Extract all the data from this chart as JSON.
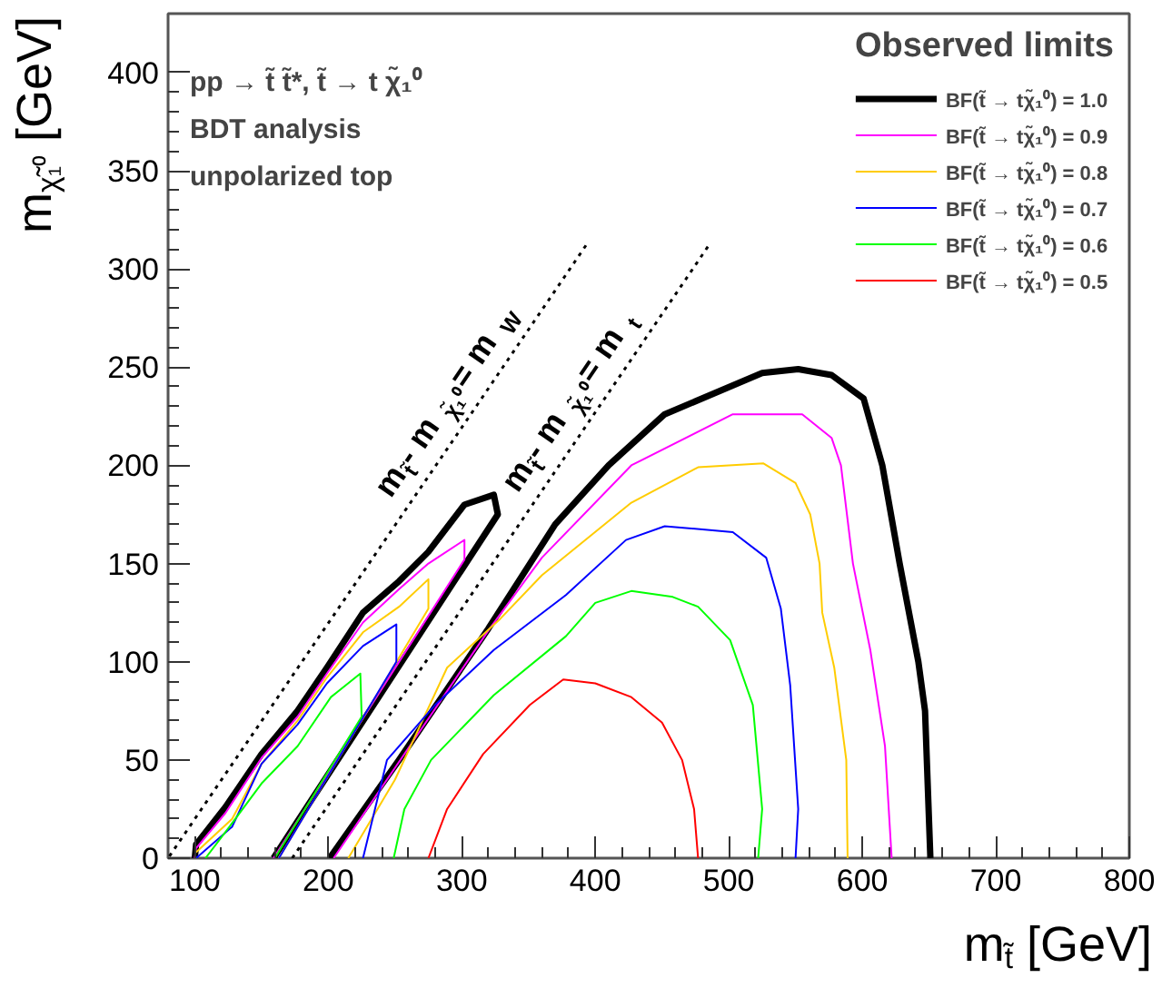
{
  "chart_data": {
    "type": "line",
    "xlabel": "m$_{t̃}$  [GeV]",
    "ylabel": "m$_{χ̃₁⁰}$  [GeV]",
    "legend_title": "Observed limits",
    "xlim": [
      80,
      800
    ],
    "ylim": [
      0,
      430
    ],
    "xticks": [
      100,
      200,
      300,
      400,
      500,
      600,
      700,
      800
    ],
    "yticks": [
      0,
      50,
      100,
      150,
      200,
      250,
      300,
      350,
      400
    ],
    "grid": false,
    "legend": "top right",
    "marker": "none",
    "series": [
      {
        "name": "BF(t̃ → tχ̃₁⁰) = 1.0",
        "color": "#000000",
        "x": [
          100,
          101,
          123,
          150,
          177,
          199,
          226,
          253,
          275,
          302,
          324,
          327,
          159,
          null,
          201,
          253,
          320,
          370,
          410,
          452,
          525,
          552,
          577,
          601,
          615,
          628,
          642,
          647,
          651
        ],
        "values": [
          0,
          7,
          26,
          53,
          75,
          97,
          125,
          141,
          156,
          180,
          185,
          175,
          0,
          null,
          0,
          50,
          117,
          170,
          200,
          226,
          247,
          249,
          246,
          234,
          200,
          150,
          100,
          75,
          0
        ]
      },
      {
        "name": "BF(t̃ → tχ̃₁⁰) = 0.9",
        "color": "#ff00ff",
        "x": [
          100,
          101,
          123,
          150,
          177,
          199,
          226,
          253,
          275,
          302,
          302,
          159,
          null,
          204,
          262,
          320,
          360,
          427,
          503,
          555,
          577,
          584,
          593,
          606,
          617,
          622
        ],
        "values": [
          0,
          5,
          23,
          51,
          72,
          94,
          120,
          137,
          150,
          162,
          152,
          0,
          null,
          0,
          58,
          116,
          153,
          200,
          226,
          226,
          214,
          200,
          150,
          106,
          57,
          0
        ]
      },
      {
        "name": "BF(t̃ → tχ̃₁⁰) = 0.8",
        "color": "#ffcc00",
        "x": [
          101,
          128,
          150,
          177,
          199,
          226,
          253,
          275,
          275,
          163,
          null,
          215,
          250,
          289,
          329,
          360,
          427,
          477,
          526,
          550,
          561,
          568,
          570,
          579,
          588,
          589
        ],
        "values": [
          3,
          20,
          48,
          70,
          92,
          115,
          128,
          142,
          127,
          0,
          null,
          0,
          40,
          97,
          122,
          144,
          181,
          199,
          201,
          191,
          175,
          150,
          125,
          97,
          50,
          0
        ]
      },
      {
        "name": "BF(t̃ → tχ̃₁⁰) = 0.7",
        "color": "#0000ff",
        "x": [
          101,
          128,
          150,
          177,
          199,
          226,
          251,
          251,
          163,
          null,
          226,
          244,
          280,
          324,
          378,
          423,
          452,
          503,
          528,
          539,
          546,
          552,
          550
        ],
        "values": [
          0,
          16,
          48,
          68,
          89,
          108,
          119,
          100,
          0,
          null,
          0,
          50,
          78,
          106,
          134,
          162,
          169,
          166,
          153,
          127,
          88,
          25,
          0
        ]
      },
      {
        "name": "BF(t̃ → tχ̃₁⁰) = 0.6",
        "color": "#00ff00",
        "x": [
          108,
          126,
          150,
          177,
          202,
          224,
          225,
          160,
          null,
          249,
          257,
          277,
          324,
          378,
          400,
          427,
          458,
          477,
          501,
          518,
          525,
          522
        ],
        "values": [
          0,
          16,
          38,
          57,
          82,
          94,
          72,
          0,
          null,
          0,
          25,
          50,
          83,
          113,
          130,
          136,
          133,
          128,
          111,
          78,
          25,
          0
        ]
      },
      {
        "name": "BF(t̃ → tχ̃₁⁰) = 0.5",
        "color": "#ff0000",
        "x": [
          275,
          289,
          316,
          351,
          376,
          400,
          427,
          450,
          465,
          474,
          477
        ],
        "values": [
          0,
          25,
          53,
          78,
          91,
          89,
          82,
          69,
          50,
          25,
          0
        ]
      },
      {
        "color": "#000000",
        "line_style": "dotted",
        "x": [
          81,
          393
        ],
        "values": [
          1,
          312
        ]
      },
      {
        "color": "#000000",
        "line_style": "dotted",
        "x": [
          173,
          485
        ],
        "values": [
          0,
          312
        ]
      }
    ],
    "annotations": [
      "pp → t̃ t̃*, t̃ → t χ̃₁⁰",
      "BDT analysis",
      "unpolarized top",
      "m$_{t̃}$ - m$_{χ̃₁⁰}$ = m$_{W}$",
      "m$_{t̃}$ - m$_{χ̃₁⁰}$ = m$_{t}$"
    ]
  }
}
